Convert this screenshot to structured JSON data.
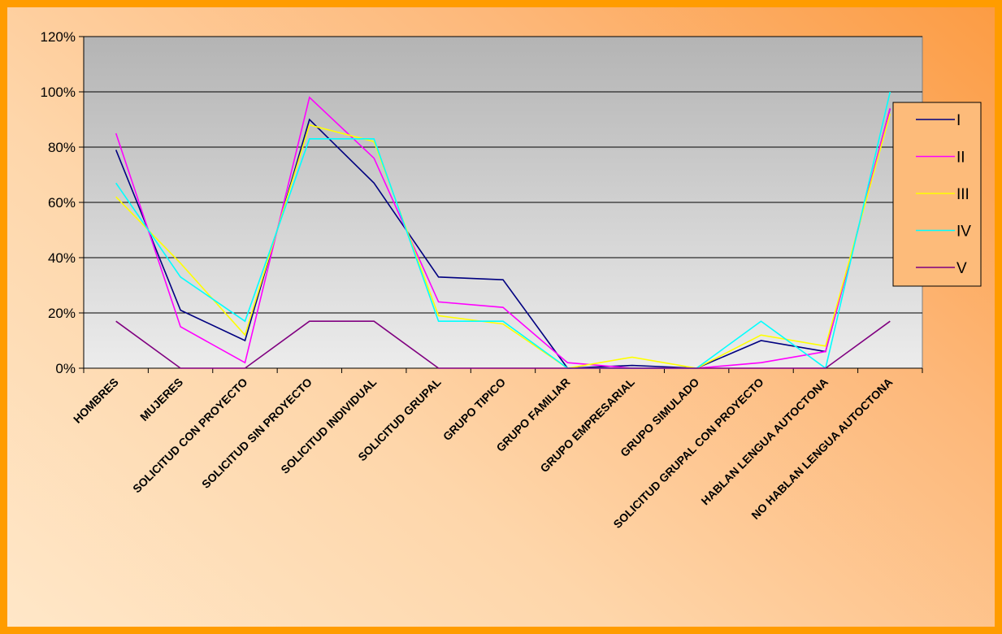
{
  "chart_data": {
    "type": "line",
    "title": "",
    "xlabel": "",
    "ylabel": "",
    "ylim": [
      0,
      120
    ],
    "yticks": [
      "0%",
      "20%",
      "40%",
      "60%",
      "80%",
      "100%",
      "120%"
    ],
    "ytick_values": [
      0,
      20,
      40,
      60,
      80,
      100,
      120
    ],
    "grid": true,
    "legend_position": "right",
    "categories": [
      "HOMBRES",
      "MUJERES",
      "SOLICITUD CON PROYECTO",
      "SOLICITUD SIN PROYECTO",
      "SOLICITUD INDIVIDUAL",
      "SOLICITUD GRUPAL",
      "GRUPO TIPICO",
      "GRUPO FAMILIAR",
      "GRUPO EMPRESARIAL",
      "GRUPO SIMULADO",
      "SOLICITUD GRUPAL CON PROYECTO",
      "HABLAN LENGUA AUTOCTONA",
      "NO HABLAN LENGUA AUTOCTONA"
    ],
    "series": [
      {
        "name": "I",
        "color": "#000080",
        "values": [
          79,
          21,
          10,
          90,
          67,
          33,
          32,
          0,
          1,
          0,
          10,
          6,
          94
        ]
      },
      {
        "name": "II",
        "color": "#ff00ff",
        "values": [
          85,
          15,
          2,
          98,
          76,
          24,
          22,
          2,
          0,
          0,
          2,
          6,
          94
        ]
      },
      {
        "name": "III",
        "color": "#ffff00",
        "values": [
          62,
          38,
          12,
          88,
          82,
          19,
          16,
          0,
          4,
          0,
          12,
          8,
          92
        ]
      },
      {
        "name": "IV",
        "color": "#00ffff",
        "values": [
          67,
          33,
          17,
          83,
          83,
          17,
          17,
          0,
          0,
          0,
          17,
          0,
          100
        ]
      },
      {
        "name": "V",
        "color": "#800080",
        "values": [
          17,
          0,
          0,
          17,
          17,
          0,
          0,
          0,
          0,
          0,
          0,
          0,
          17
        ]
      }
    ]
  }
}
